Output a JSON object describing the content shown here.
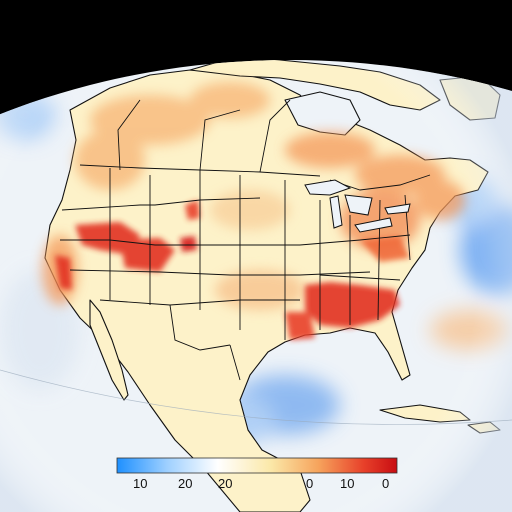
{
  "legend": {
    "gradient_colors": [
      "#1e90ff",
      "#9fd0ff",
      "#ffffff",
      "#fbe8a8",
      "#f6a35c",
      "#e8412a",
      "#c80d12"
    ],
    "tick_labels": [
      "10",
      "20",
      "20",
      "0",
      "10",
      "0"
    ]
  },
  "map_colors": {
    "space": "#000000",
    "ocean": "#eef3f8",
    "cold_anomaly": "#7fb0f0",
    "land_base": "#fdf2c9",
    "warm_anomaly": "#f7b474",
    "hot_anomaly": "#e23222",
    "borders": "#111111"
  }
}
